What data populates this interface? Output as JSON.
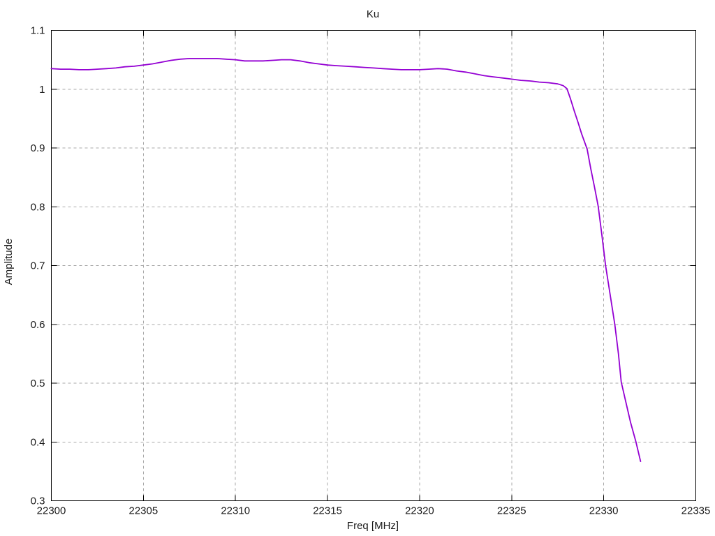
{
  "chart_data": {
    "type": "line",
    "title": "Ku",
    "xlabel": "Freq [MHz]",
    "ylabel": "Amplitude",
    "xlim": [
      22300,
      22335
    ],
    "ylim": [
      0.3,
      1.1
    ],
    "grid": true,
    "legend_position": "none",
    "xticks": [
      {
        "value": 22300,
        "label": "22300"
      },
      {
        "value": 22305,
        "label": "22305"
      },
      {
        "value": 22310,
        "label": "22310"
      },
      {
        "value": 22315,
        "label": "22315"
      },
      {
        "value": 22320,
        "label": "22320"
      },
      {
        "value": 22325,
        "label": "22325"
      },
      {
        "value": 22330,
        "label": "22330"
      },
      {
        "value": 22335,
        "label": "22335"
      }
    ],
    "yticks": [
      {
        "value": 0.3,
        "label": "0.3"
      },
      {
        "value": 0.4,
        "label": "0.4"
      },
      {
        "value": 0.5,
        "label": "0.5"
      },
      {
        "value": 0.6,
        "label": "0.6"
      },
      {
        "value": 0.7,
        "label": "0.7"
      },
      {
        "value": 0.8,
        "label": "0.8"
      },
      {
        "value": 0.9,
        "label": "0.9"
      },
      {
        "value": 1.0,
        "label": "1"
      },
      {
        "value": 1.1,
        "label": "1.1"
      }
    ],
    "colors": {
      "background": "#ffffff",
      "axis": "#000000",
      "grid": "#a8a8a8",
      "text": "#1a1a1a",
      "line": "#9400d3"
    },
    "series": [
      {
        "name": "Ku",
        "color": "#9400d3",
        "points": [
          [
            22300.0,
            1.035
          ],
          [
            22300.5,
            1.034
          ],
          [
            22301.0,
            1.034
          ],
          [
            22301.5,
            1.033
          ],
          [
            22302.0,
            1.033
          ],
          [
            22302.5,
            1.034
          ],
          [
            22303.0,
            1.035
          ],
          [
            22303.5,
            1.036
          ],
          [
            22304.0,
            1.038
          ],
          [
            22304.5,
            1.039
          ],
          [
            22305.0,
            1.041
          ],
          [
            22305.5,
            1.043
          ],
          [
            22306.0,
            1.046
          ],
          [
            22306.5,
            1.049
          ],
          [
            22307.0,
            1.051
          ],
          [
            22307.5,
            1.052
          ],
          [
            22308.0,
            1.052
          ],
          [
            22308.5,
            1.052
          ],
          [
            22309.0,
            1.052
          ],
          [
            22309.5,
            1.051
          ],
          [
            22310.0,
            1.05
          ],
          [
            22310.5,
            1.048
          ],
          [
            22311.0,
            1.048
          ],
          [
            22311.5,
            1.048
          ],
          [
            22312.0,
            1.049
          ],
          [
            22312.5,
            1.05
          ],
          [
            22313.0,
            1.05
          ],
          [
            22313.5,
            1.048
          ],
          [
            22314.0,
            1.045
          ],
          [
            22314.5,
            1.043
          ],
          [
            22315.0,
            1.041
          ],
          [
            22315.5,
            1.04
          ],
          [
            22316.0,
            1.039
          ],
          [
            22316.5,
            1.038
          ],
          [
            22317.0,
            1.037
          ],
          [
            22317.5,
            1.036
          ],
          [
            22318.0,
            1.035
          ],
          [
            22318.5,
            1.034
          ],
          [
            22319.0,
            1.033
          ],
          [
            22319.5,
            1.033
          ],
          [
            22320.0,
            1.033
          ],
          [
            22320.5,
            1.034
          ],
          [
            22321.0,
            1.035
          ],
          [
            22321.5,
            1.034
          ],
          [
            22322.0,
            1.031
          ],
          [
            22322.5,
            1.029
          ],
          [
            22323.0,
            1.026
          ],
          [
            22323.5,
            1.023
          ],
          [
            22324.0,
            1.021
          ],
          [
            22324.5,
            1.019
          ],
          [
            22325.0,
            1.017
          ],
          [
            22325.5,
            1.015
          ],
          [
            22326.0,
            1.014
          ],
          [
            22326.5,
            1.012
          ],
          [
            22327.0,
            1.011
          ],
          [
            22327.5,
            1.009
          ],
          [
            22327.8,
            1.006
          ],
          [
            22328.0,
            1.001
          ],
          [
            22328.2,
            0.983
          ],
          [
            22328.4,
            0.963
          ],
          [
            22328.6,
            0.944
          ],
          [
            22328.8,
            0.924
          ],
          [
            22329.1,
            0.898
          ],
          [
            22329.3,
            0.864
          ],
          [
            22329.5,
            0.833
          ],
          [
            22329.7,
            0.801
          ],
          [
            22329.9,
            0.752
          ],
          [
            22330.1,
            0.7
          ],
          [
            22330.35,
            0.65
          ],
          [
            22330.6,
            0.6
          ],
          [
            22330.8,
            0.55
          ],
          [
            22330.95,
            0.502
          ],
          [
            22331.2,
            0.468
          ],
          [
            22331.45,
            0.434
          ],
          [
            22331.75,
            0.4
          ],
          [
            22332.0,
            0.367
          ]
        ]
      }
    ]
  }
}
